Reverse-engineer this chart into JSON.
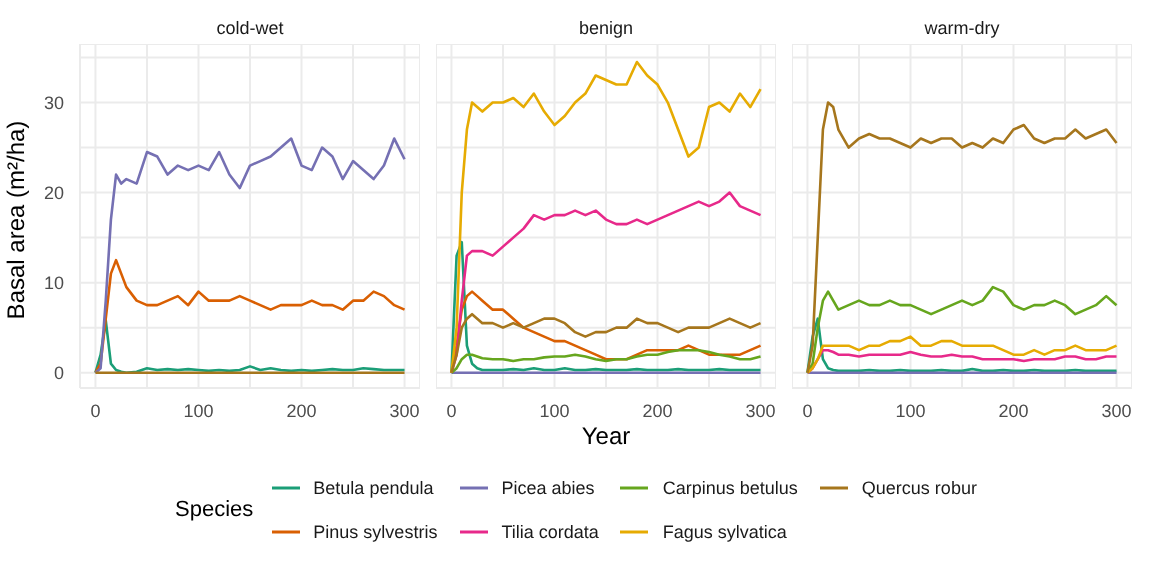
{
  "chart_data": [
    {
      "type": "line",
      "title": "cold-wet",
      "ylabel": "Basal area (m²/ha)",
      "grid": true,
      "marker": "none",
      "line_style": "solid",
      "legend": "bottom",
      "legend_title": "Species",
      "x": [
        0,
        5,
        10,
        15,
        20,
        25,
        30,
        40,
        50,
        60,
        70,
        80,
        90,
        100,
        110,
        120,
        130,
        140,
        150,
        160,
        170,
        180,
        190,
        200,
        210,
        220,
        230,
        240,
        250,
        260,
        270,
        280,
        290,
        300
      ],
      "xlim": [
        -15,
        315
      ],
      "ylim": [
        -1.7,
        36.5
      ],
      "xticks": [
        0,
        {
          "value": 50,
          "label": null
        },
        100,
        {
          "value": 150,
          "label": null
        },
        200,
        {
          "value": 250,
          "label": null
        },
        300
      ],
      "yticks": [
        0,
        {
          "value": 5,
          "label": null
        },
        10,
        {
          "value": 15,
          "label": null
        },
        20,
        {
          "value": 25,
          "label": null
        },
        30,
        {
          "value": 35,
          "label": null
        }
      ],
      "series": [
        {
          "name": "Betula pendula",
          "color": "#1b9e77",
          "values": [
            0,
            2,
            5.8,
            1,
            0.3,
            0.1,
            0,
            0.1,
            0.5,
            0.3,
            0.4,
            0.3,
            0.4,
            0.3,
            0.2,
            0.3,
            0.2,
            0.3,
            0.7,
            0.3,
            0.5,
            0.3,
            0.2,
            0.3,
            0.2,
            0.3,
            0.4,
            0.3,
            0.3,
            0.5,
            0.4,
            0.3,
            0.3,
            0.3
          ]
        },
        {
          "name": "Pinus sylvestris",
          "color": "#d95f02",
          "values": [
            0,
            1,
            6,
            11,
            12.5,
            11,
            9.5,
            8,
            7.5,
            7.5,
            8,
            8.5,
            7.5,
            9,
            8,
            8,
            8,
            8.5,
            8,
            7.5,
            7,
            7.5,
            7.5,
            7.5,
            8,
            7.5,
            7.5,
            7,
            8,
            8,
            9,
            8.5,
            7.5,
            7
          ]
        },
        {
          "name": "Picea abies",
          "color": "#7570b3",
          "values": [
            0,
            0.5,
            8,
            17,
            22,
            21,
            21.5,
            21,
            24.5,
            24,
            22,
            23,
            22.5,
            23,
            22.5,
            24.5,
            22,
            20.5,
            23,
            23.5,
            24,
            25,
            26,
            23,
            22.5,
            25,
            24,
            21.5,
            23.5,
            22.5,
            21.5,
            23,
            26,
            23.7
          ]
        },
        {
          "name": "Quercus robur",
          "color": "#a6761d",
          "values": [
            0,
            0,
            0,
            0,
            0,
            0,
            0,
            0,
            0,
            0,
            0,
            0,
            0,
            0,
            0,
            0,
            0,
            0,
            0,
            0,
            0,
            0,
            0,
            0,
            0,
            0,
            0,
            0,
            0,
            0,
            0,
            0,
            0,
            0
          ]
        }
      ]
    },
    {
      "type": "line",
      "title": "benign",
      "xlabel": "Year",
      "grid": true,
      "marker": "none",
      "line_style": "solid",
      "tick_labels": "x",
      "legend": "bottom",
      "x": [
        0,
        5,
        10,
        15,
        20,
        25,
        30,
        40,
        50,
        60,
        70,
        80,
        90,
        100,
        110,
        120,
        130,
        140,
        150,
        160,
        170,
        180,
        190,
        200,
        210,
        220,
        230,
        240,
        250,
        260,
        270,
        280,
        290,
        300
      ],
      "xlim": [
        -15,
        315
      ],
      "ylim": [
        -1.7,
        36.5
      ],
      "xticks": [
        0,
        {
          "value": 50,
          "label": null
        },
        100,
        {
          "value": 150,
          "label": null
        },
        200,
        {
          "value": 250,
          "label": null
        },
        300
      ],
      "yticks": [
        0,
        {
          "value": 5,
          "label": null
        },
        10,
        {
          "value": 15,
          "label": null
        },
        20,
        {
          "value": 25,
          "label": null
        },
        30,
        {
          "value": 35,
          "label": null
        }
      ],
      "series": [
        {
          "name": "Betula pendula",
          "color": "#1b9e77",
          "values": [
            0,
            13,
            14.5,
            3,
            1,
            0.5,
            0.3,
            0.3,
            0.3,
            0.4,
            0.3,
            0.5,
            0.3,
            0.3,
            0.5,
            0.3,
            0.3,
            0.4,
            0.3,
            0.3,
            0.3,
            0.4,
            0.3,
            0.3,
            0.3,
            0.4,
            0.3,
            0.3,
            0.3,
            0.4,
            0.3,
            0.3,
            0.3,
            0.3
          ]
        },
        {
          "name": "Pinus sylvestris",
          "color": "#d95f02",
          "values": [
            0,
            3,
            7,
            8.5,
            9,
            8.5,
            8,
            7,
            7,
            6,
            5,
            4.5,
            4,
            3.5,
            3.5,
            3,
            2.5,
            2,
            1.5,
            1.5,
            1.5,
            2,
            2.5,
            2.5,
            2.5,
            2.5,
            3,
            2.5,
            2,
            2,
            2,
            2,
            2.5,
            3
          ]
        },
        {
          "name": "Picea abies",
          "color": "#7570b3",
          "values": [
            0,
            0,
            0,
            0,
            0,
            0,
            0,
            0,
            0,
            0,
            0,
            0,
            0,
            0,
            0,
            0,
            0,
            0,
            0,
            0,
            0,
            0,
            0,
            0,
            0,
            0,
            0,
            0,
            0,
            0,
            0,
            0,
            0,
            0
          ]
        },
        {
          "name": "Tilia cordata",
          "color": "#e7298a",
          "values": [
            0,
            2,
            8,
            13,
            13.5,
            13.5,
            13.5,
            13,
            14,
            15,
            16,
            17.5,
            17,
            17.5,
            17.5,
            18,
            17.5,
            18,
            17,
            16.5,
            16.5,
            17,
            16.5,
            17,
            17.5,
            18,
            18.5,
            19,
            18.5,
            19,
            20,
            18.5,
            18,
            17.5
          ]
        },
        {
          "name": "Carpinus betulus",
          "color": "#66a61e",
          "values": [
            0,
            0.5,
            1.5,
            2,
            2,
            1.8,
            1.6,
            1.5,
            1.5,
            1.3,
            1.5,
            1.5,
            1.7,
            1.8,
            1.8,
            2,
            1.8,
            1.5,
            1.3,
            1.5,
            1.5,
            1.8,
            2,
            2,
            2.3,
            2.5,
            2.5,
            2.5,
            2.3,
            2,
            1.8,
            1.5,
            1.5,
            1.8
          ]
        },
        {
          "name": "Fagus sylvatica",
          "color": "#e6ab02",
          "values": [
            0,
            5,
            20,
            27,
            30,
            29.5,
            29,
            30,
            30,
            30.5,
            29.5,
            31,
            29,
            27.5,
            28.5,
            30,
            31,
            33,
            32.5,
            32,
            32,
            34.5,
            33,
            32,
            30,
            27,
            24,
            25,
            29.5,
            30,
            29,
            31,
            29.5,
            31.5
          ]
        },
        {
          "name": "Quercus robur",
          "color": "#a6761d",
          "values": [
            0,
            2,
            5,
            6,
            6.5,
            6,
            5.5,
            5.5,
            5,
            5.5,
            5,
            5.5,
            6,
            6,
            5.5,
            4.5,
            4,
            4.5,
            4.5,
            5,
            5,
            6,
            5.5,
            5.5,
            5,
            4.5,
            5,
            5,
            5,
            5.5,
            6,
            5.5,
            5,
            5.5
          ]
        }
      ]
    },
    {
      "type": "line",
      "title": "warm-dry",
      "grid": true,
      "marker": "none",
      "line_style": "solid",
      "tick_labels": "x",
      "x": [
        0,
        5,
        10,
        15,
        20,
        25,
        30,
        40,
        50,
        60,
        70,
        80,
        90,
        100,
        110,
        120,
        130,
        140,
        150,
        160,
        170,
        180,
        190,
        200,
        210,
        220,
        230,
        240,
        250,
        260,
        270,
        280,
        290,
        300
      ],
      "xlim": [
        -15,
        315
      ],
      "ylim": [
        -1.7,
        36.5
      ],
      "xticks": [
        0,
        {
          "value": 50,
          "label": null
        },
        100,
        {
          "value": 150,
          "label": null
        },
        200,
        {
          "value": 250,
          "label": null
        },
        300
      ],
      "yticks": [
        0,
        {
          "value": 5,
          "label": null
        },
        10,
        {
          "value": 15,
          "label": null
        },
        20,
        {
          "value": 25,
          "label": null
        },
        30,
        {
          "value": 35,
          "label": null
        }
      ],
      "series": [
        {
          "name": "Betula pendula",
          "color": "#1b9e77",
          "values": [
            0,
            4,
            6,
            1.5,
            0.5,
            0.3,
            0.2,
            0.2,
            0.2,
            0.3,
            0.2,
            0.2,
            0.3,
            0.2,
            0.2,
            0.2,
            0.3,
            0.2,
            0.2,
            0.4,
            0.2,
            0.2,
            0.3,
            0.2,
            0.2,
            0.3,
            0.2,
            0.2,
            0.2,
            0.3,
            0.2,
            0.2,
            0.2,
            0.2
          ]
        },
        {
          "name": "Picea abies",
          "color": "#7570b3",
          "values": [
            0,
            0,
            0,
            0,
            0,
            0,
            0,
            0,
            0,
            0,
            0,
            0,
            0,
            0,
            0,
            0,
            0,
            0,
            0,
            0,
            0,
            0,
            0,
            0,
            0,
            0,
            0,
            0,
            0,
            0,
            0,
            0,
            0,
            0
          ]
        },
        {
          "name": "Tilia cordata",
          "color": "#e7298a",
          "values": [
            0,
            0.5,
            1.5,
            2.5,
            2.5,
            2.3,
            2,
            2,
            1.8,
            2,
            2,
            2,
            2,
            2.3,
            2,
            1.8,
            1.8,
            2,
            1.8,
            1.8,
            1.5,
            1.5,
            1.5,
            1.5,
            1.3,
            1.5,
            1.5,
            1.5,
            1.8,
            1.8,
            1.5,
            1.5,
            1.8,
            1.8
          ]
        },
        {
          "name": "Carpinus betulus",
          "color": "#66a61e",
          "values": [
            0,
            1,
            5,
            8,
            9,
            8,
            7,
            7.5,
            8,
            7.5,
            7.5,
            8,
            7.5,
            7.5,
            7,
            6.5,
            7,
            7.5,
            8,
            7.5,
            8,
            9.5,
            9,
            7.5,
            7,
            7.5,
            7.5,
            8,
            7.5,
            6.5,
            7,
            7.5,
            8.5,
            7.5
          ]
        },
        {
          "name": "Fagus sylvatica",
          "color": "#e6ab02",
          "values": [
            0,
            0.5,
            1.5,
            3,
            3,
            3,
            3,
            3,
            2.5,
            3,
            3,
            3.5,
            3.5,
            4,
            3,
            3,
            3.5,
            3.5,
            3,
            3,
            3,
            3,
            2.5,
            2,
            2,
            2.5,
            2,
            2.5,
            2.5,
            3,
            2.5,
            2.5,
            2.5,
            3
          ]
        },
        {
          "name": "Quercus robur",
          "color": "#a6761d",
          "values": [
            0,
            3,
            15,
            27,
            30,
            29.5,
            27,
            25,
            26,
            26.5,
            26,
            26,
            25.5,
            25,
            26,
            25.5,
            26,
            26,
            25,
            25.5,
            25,
            26,
            25.5,
            27,
            27.5,
            26,
            25.5,
            26,
            26,
            27,
            26,
            26.5,
            27,
            25.5
          ]
        }
      ]
    }
  ]
}
